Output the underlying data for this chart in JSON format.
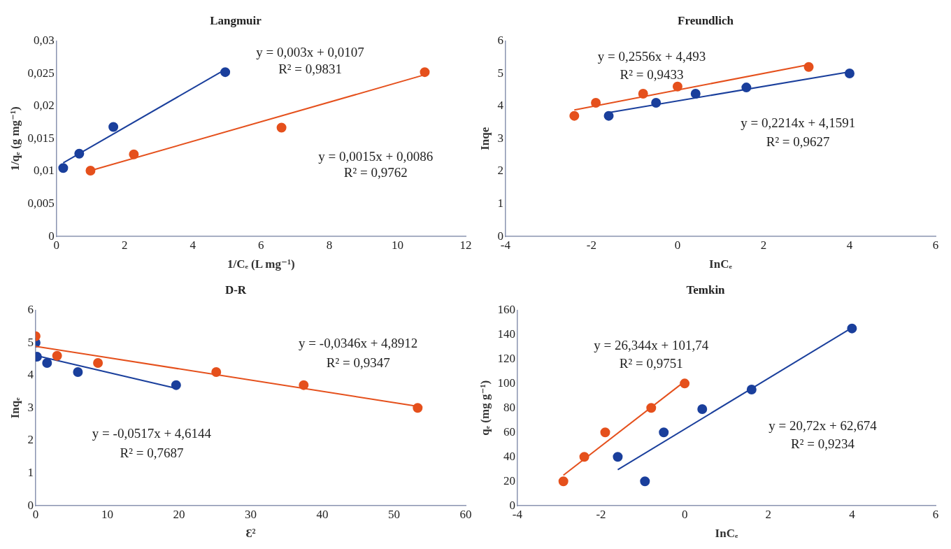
{
  "chart_data": [
    {
      "type": "scatter",
      "title": "Langmuir",
      "xlabel": "1/Cₑ (L mg⁻¹)",
      "ylabel": "1/qₑ (g mg⁻¹)",
      "xlim": [
        0,
        12
      ],
      "xticks": [
        0,
        2,
        4,
        6,
        8,
        10,
        12
      ],
      "ylim": [
        0,
        0.03
      ],
      "yticks": [
        0,
        {
          "value": 0.005,
          "label": "0,005"
        },
        {
          "value": 0.01,
          "label": "0,01"
        },
        {
          "value": 0.015,
          "label": "0,015"
        },
        {
          "value": 0.02,
          "label": "0,02"
        },
        {
          "value": 0.025,
          "label": "0,025"
        },
        {
          "value": 0.03,
          "label": "0,03"
        }
      ],
      "grid": false,
      "legend": false,
      "marker": "circle",
      "series": [
        {
          "type": "scatter",
          "color": "#1a3f9c",
          "x": [
            0.2,
            0.67,
            1.67,
            4.95
          ],
          "values": [
            0.0105,
            0.0127,
            0.0168,
            0.0252
          ]
        },
        {
          "type": "line",
          "color": "#1a3f9c",
          "marker": "none",
          "x": [
            0.2,
            4.95
          ],
          "values": [
            0.0113,
            0.0256
          ]
        },
        {
          "type": "scatter",
          "color": "#e5501c",
          "x": [
            1,
            2.27,
            6.6,
            10.8
          ],
          "values": [
            0.0101,
            0.0126,
            0.0167,
            0.0252
          ]
        },
        {
          "type": "line",
          "color": "#e5501c",
          "marker": "none",
          "x": [
            1,
            10.8
          ],
          "values": [
            0.0101,
            0.0248
          ]
        }
      ],
      "annotations": [
        "y = 0,003x + 0,0107",
        "R² = 0,9831",
        "y = 0,0015x + 0,0086",
        "R² = 0,9762"
      ]
    },
    {
      "type": "scatter",
      "title": "Freundlich",
      "xlabel": "InCₑ",
      "ylabel": "Inqe",
      "xlim": [
        -4,
        6
      ],
      "xticks": [
        -4,
        -2,
        0,
        2,
        4,
        6
      ],
      "ylim": [
        0,
        6
      ],
      "yticks": [
        0,
        1,
        2,
        3,
        4,
        5,
        6
      ],
      "grid": false,
      "legend": false,
      "marker": "circle",
      "series": [
        {
          "type": "scatter",
          "color": "#e5501c",
          "x": [
            -2.4,
            -1.9,
            -0.8,
            0,
            3.05
          ],
          "values": [
            3.7,
            4.1,
            4.38,
            4.6,
            5.2
          ]
        },
        {
          "type": "line",
          "color": "#e5501c",
          "marker": "none",
          "x": [
            -2.4,
            3.05
          ],
          "values": [
            3.88,
            5.27
          ]
        },
        {
          "type": "scatter",
          "color": "#1a3f9c",
          "x": [
            -1.6,
            -0.5,
            0.42,
            1.6,
            4
          ],
          "values": [
            3.7,
            4.1,
            4.38,
            4.57,
            5
          ]
        },
        {
          "type": "line",
          "color": "#1a3f9c",
          "marker": "none",
          "x": [
            -1.6,
            4
          ],
          "values": [
            3.8,
            5.05
          ]
        }
      ],
      "annotations": [
        "y = 0,2556x + 4,493",
        "R² = 0,9433",
        "y = 0,2214x + 4,1591",
        "R² = 0,9627"
      ]
    },
    {
      "type": "scatter",
      "title": "D-R",
      "xlabel": "Ɛ²",
      "ylabel": "Inqₑ",
      "xlim": [
        0,
        60
      ],
      "xticks": [
        0,
        10,
        20,
        30,
        40,
        50,
        60
      ],
      "ylim": [
        0,
        6
      ],
      "yticks": [
        0,
        1,
        2,
        3,
        4,
        5,
        6
      ],
      "grid": false,
      "legend": false,
      "marker": "circle",
      "series": [
        {
          "type": "scatter",
          "color": "#e5501c",
          "x": [
            0,
            3,
            8.7,
            25.2,
            37.4,
            53.3
          ],
          "values": [
            5.2,
            4.6,
            4.38,
            4.1,
            3.7,
            3
          ]
        },
        {
          "type": "line",
          "color": "#e5501c",
          "marker": "none",
          "x": [
            0,
            53.3
          ],
          "values": [
            4.89,
            3.05
          ]
        },
        {
          "type": "scatter",
          "color": "#1a3f9c",
          "x": [
            0,
            0.2,
            1.6,
            5.9,
            19.6
          ],
          "values": [
            5,
            4.57,
            4.38,
            4.1,
            3.7
          ]
        },
        {
          "type": "line",
          "color": "#1a3f9c",
          "marker": "none",
          "x": [
            0,
            19.6
          ],
          "values": [
            4.61,
            3.6
          ]
        }
      ],
      "annotations": [
        "y = -0,0346x + 4,8912",
        "R² = 0,9347",
        "y = -0,0517x + 4,6144",
        "R² = 0,7687"
      ]
    },
    {
      "type": "scatter",
      "title": "Temkin",
      "xlabel": "InCₑ",
      "ylabel": "qₑ (mg g⁻¹)",
      "xlim": [
        -4,
        6
      ],
      "xticks": [
        -4,
        -2,
        0,
        2,
        4,
        6
      ],
      "ylim": [
        0,
        160
      ],
      "yticks": [
        0,
        20,
        40,
        60,
        80,
        100,
        120,
        140,
        160
      ],
      "grid": false,
      "legend": false,
      "marker": "circle",
      "series": [
        {
          "type": "scatter",
          "color": "#e5501c",
          "x": [
            -2.9,
            -2.4,
            -1.9,
            -0.8,
            0
          ],
          "values": [
            20,
            40,
            60,
            80,
            100
          ]
        },
        {
          "type": "line",
          "color": "#e5501c",
          "marker": "none",
          "x": [
            -2.9,
            0
          ],
          "values": [
            25,
            101.7
          ]
        },
        {
          "type": "scatter",
          "color": "#1a3f9c",
          "x": [
            -1.6,
            -0.95,
            -0.5,
            0.42,
            1.6,
            4
          ],
          "values": [
            40,
            20,
            60,
            79,
            95,
            145
          ]
        },
        {
          "type": "line",
          "color": "#1a3f9c",
          "marker": "none",
          "x": [
            -1.6,
            4
          ],
          "values": [
            29.5,
            145.6
          ]
        }
      ],
      "annotations": [
        "y = 26,344x + 101,74",
        "R² = 0,9751",
        "y = 20,72x + 62,674",
        "R² = 0,9234"
      ]
    }
  ]
}
